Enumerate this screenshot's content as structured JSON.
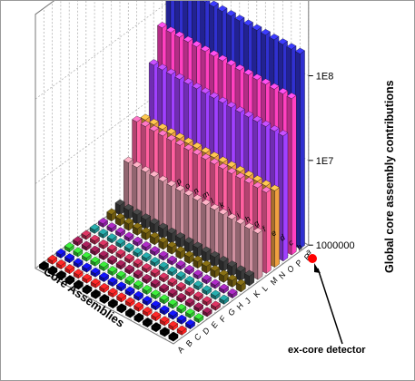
{
  "chart_data": {
    "type": "bar",
    "variant": "3d-bar",
    "title": "",
    "xlabel": "Core Assemblies",
    "ylabel": "",
    "zlabel": "Global core assembly contributions",
    "z_scale": "log",
    "z_tick_labels": [
      "1000000",
      "1E7",
      "1E8"
    ],
    "z_tick_values": [
      1000000,
      10000000,
      100000000
    ],
    "zlim": [
      1000000,
      1000000000
    ],
    "grid": true,
    "row_tick_labels": [
      "a",
      "b",
      "c",
      "d",
      "e",
      "f",
      "g",
      "h",
      "i",
      "j",
      "k",
      "l",
      "m",
      "n",
      "o",
      "p"
    ],
    "column_tick_labels": [
      "A",
      "B",
      "C",
      "D",
      "E",
      "F",
      "G",
      "H",
      "J",
      "K",
      "L",
      "M",
      "N",
      "O",
      "P",
      "R"
    ],
    "column_colors": [
      "#000000",
      "#ff2020",
      "#1010d0",
      "#30c030",
      "#8a1a4a",
      "#b22a50",
      "#1f8c8c",
      "#8c22a0",
      "#6e5a10",
      "#3a3a3a",
      "#d090a0",
      "#ff60a0",
      "#f0a040",
      "#a040ff",
      "#ff40c0",
      "#3030d0"
    ],
    "series": [
      {
        "column": "A",
        "values": [
          1100000,
          1100000,
          1100000,
          1100000,
          1100000,
          1100000,
          1100000,
          1100000,
          1100000,
          1100000,
          1100000,
          1100000,
          1100000,
          1100000,
          1100000,
          1100000
        ]
      },
      {
        "column": "B",
        "values": [
          1100000,
          1100000,
          1100000,
          1100000,
          1100000,
          1100000,
          1100000,
          1100000,
          1100000,
          1100000,
          1100000,
          1100000,
          1100000,
          1100000,
          1100000,
          1100000
        ]
      },
      {
        "column": "C",
        "values": [
          1100000,
          1100000,
          1100000,
          1100000,
          1100000,
          1100000,
          1100000,
          1100000,
          1100000,
          1100000,
          1100000,
          1100000,
          1100000,
          1100000,
          1100000,
          1100000
        ]
      },
      {
        "column": "D",
        "values": [
          1100000,
          1100000,
          1100000,
          1100000,
          1100000,
          1100000,
          1100000,
          1100000,
          1100000,
          1100000,
          1100000,
          1100000,
          1100000,
          1100000,
          1100000,
          1100000
        ]
      },
      {
        "column": "E",
        "values": [
          1100000,
          1100000,
          1100000,
          1100000,
          1100000,
          1100000,
          1100000,
          1100000,
          1100000,
          1100000,
          1100000,
          1100000,
          1100000,
          1100000,
          1100000,
          1100000
        ]
      },
      {
        "column": "F",
        "values": [
          1100000,
          1100000,
          1100000,
          1100000,
          1100000,
          1100000,
          1100000,
          1100000,
          1100000,
          1100000,
          1100000,
          1100000,
          1100000,
          1100000,
          1100000,
          1100000
        ]
      },
      {
        "column": "G",
        "values": [
          1100000,
          1100000,
          1100000,
          1100000,
          1100000,
          1100000,
          1100000,
          1100000,
          1100000,
          1100000,
          1100000,
          1100000,
          1100000,
          1100000,
          1100000,
          1100000
        ]
      },
      {
        "column": "H",
        "values": [
          1100000,
          1100000,
          1100000,
          1100000,
          1100000,
          1100000,
          1100000,
          1100000,
          1100000,
          1100000,
          1100000,
          1100000,
          1100000,
          1100000,
          1100000,
          1100000
        ]
      },
      {
        "column": "J",
        "values": [
          1200000,
          1200000,
          1200000,
          1200000,
          1200000,
          1200000,
          1200000,
          1200000,
          1200000,
          1200000,
          1200000,
          1200000,
          1200000,
          1200000,
          1200000,
          1200000
        ]
      },
      {
        "column": "K",
        "values": [
          1300000,
          1300000,
          1300000,
          1300000,
          1300000,
          1300000,
          1300000,
          1300000,
          1300000,
          1300000,
          1300000,
          1300000,
          1300000,
          1300000,
          1300000,
          1300000
        ]
      },
      {
        "column": "L",
        "values": [
          3500000,
          3500000,
          3500000,
          3500000,
          3500000,
          3500000,
          3500000,
          3500000,
          3500000,
          3500000,
          3500000,
          3500000,
          3500000,
          3500000,
          3500000,
          3500000
        ]
      },
      {
        "column": "M",
        "values": [
          9000000,
          9000000,
          9000000,
          9000000,
          9000000,
          9000000,
          9000000,
          9000000,
          9000000,
          9000000,
          9000000,
          9000000,
          9000000,
          9000000,
          9000000,
          9000000
        ]
      },
      {
        "column": "N",
        "values": [
          8000000,
          8000000,
          8000000,
          8000000,
          8000000,
          8000000,
          8000000,
          8000000,
          8000000,
          8000000,
          8000000,
          8000000,
          8000000,
          8000000,
          8000000,
          8000000
        ]
      },
      {
        "column": "O",
        "values": [
          30000000,
          30000000,
          30000000,
          30000000,
          30000000,
          30000000,
          30000000,
          30000000,
          30000000,
          30000000,
          30000000,
          30000000,
          30000000,
          30000000,
          30000000,
          30000000
        ]
      },
      {
        "column": "P",
        "values": [
          70000000,
          70000000,
          70000000,
          70000000,
          70000000,
          70000000,
          70000000,
          70000000,
          70000000,
          70000000,
          70000000,
          70000000,
          70000000,
          70000000,
          70000000,
          70000000
        ]
      },
      {
        "column": "R",
        "values": [
          200000000,
          200000000,
          200000000,
          200000000,
          200000000,
          200000000,
          200000000,
          200000000,
          200000000,
          200000000,
          200000000,
          200000000,
          200000000,
          200000000,
          200000000,
          200000000
        ]
      }
    ],
    "annotations": [
      {
        "text": "ex-core detector",
        "marker_color": "#ff0000"
      }
    ]
  }
}
